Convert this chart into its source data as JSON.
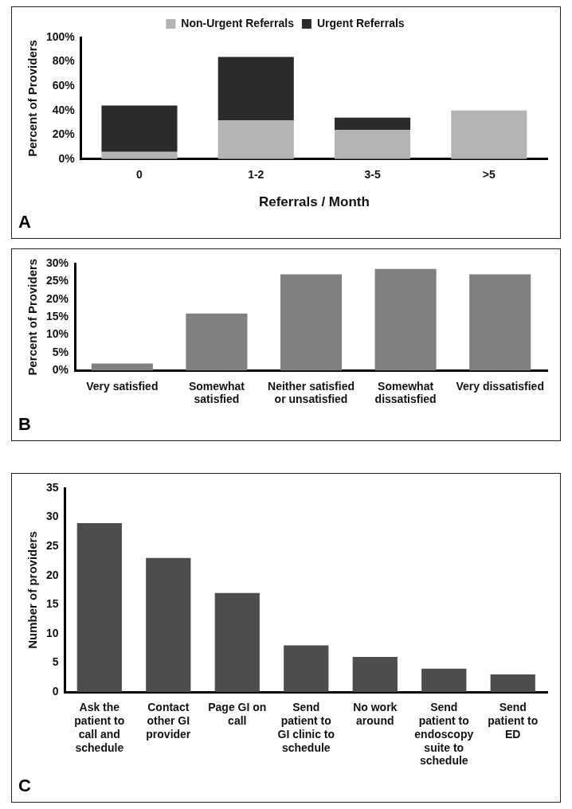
{
  "chart_data": [
    {
      "type": "bar",
      "stacked": true,
      "xlabel": "Referrals / Month",
      "ylabel": "Percent of Providers",
      "categories": [
        "0",
        "1-2",
        "3-5",
        ">5"
      ],
      "series": [
        {
          "name": "Non-Urgent Referrals",
          "color": "#b3b3b3",
          "values": [
            6,
            32,
            24,
            40
          ]
        },
        {
          "name": "Urgent Referrals",
          "color": "#2b2b2b",
          "values": [
            38,
            52,
            10,
            0
          ]
        }
      ],
      "ylim": [
        0,
        100
      ],
      "yticks": [
        {
          "value": 0,
          "label": "0%"
        },
        {
          "value": 20,
          "label": "20%"
        },
        {
          "value": 40,
          "label": "40%"
        },
        {
          "value": 60,
          "label": "60%"
        },
        {
          "value": 80,
          "label": "80%"
        },
        {
          "value": 100,
          "label": "100%"
        }
      ],
      "grid": false,
      "legend": "top",
      "annotations": [
        "A"
      ]
    },
    {
      "type": "bar",
      "ylabel": "Percent of Providers",
      "categories": [
        "Very satisfied",
        "Somewhat satisfied",
        "Neither satisfied or unsatisfied",
        "Somewhat dissatisfied",
        "Very dissatisfied"
      ],
      "values": [
        2,
        16,
        27,
        28.5,
        27
      ],
      "color": "#808080",
      "ylim": [
        0,
        30
      ],
      "yticks": [
        {
          "value": 0,
          "label": "0%"
        },
        {
          "value": 5,
          "label": "5%"
        },
        {
          "value": 10,
          "label": "10%"
        },
        {
          "value": 15,
          "label": "15%"
        },
        {
          "value": 20,
          "label": "20%"
        },
        {
          "value": 25,
          "label": "25%"
        },
        {
          "value": 30,
          "label": "30%"
        }
      ],
      "grid": false,
      "legend": false,
      "annotations": [
        "B"
      ]
    },
    {
      "type": "bar",
      "ylabel": "Number of providers",
      "categories": [
        "Ask the patient to call and schedule",
        "Contact other GI provider",
        "Page GI on call",
        "Send patient to GI clinic to schedule",
        "No work around",
        "Send patient to endoscopy suite to schedule",
        "Send patient to ED"
      ],
      "values": [
        29,
        23,
        17,
        8,
        6,
        4,
        3
      ],
      "color": "#4d4d4d",
      "ylim": [
        0,
        35
      ],
      "yticks": [
        0,
        5,
        10,
        15,
        20,
        25,
        30,
        35
      ],
      "grid": false,
      "legend": false,
      "annotations": [
        "C"
      ]
    }
  ]
}
